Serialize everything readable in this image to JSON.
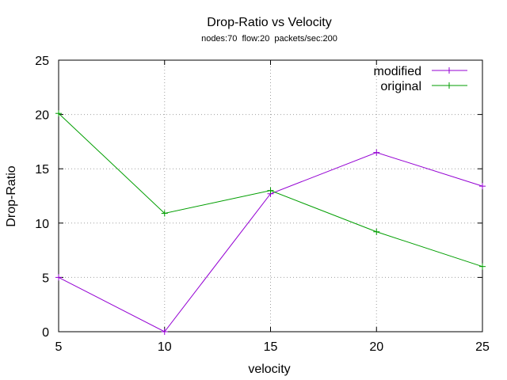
{
  "chart_data": {
    "type": "line",
    "title": "Drop-Ratio vs Velocity",
    "subtitle": "nodes:70  flow:20  packets/sec:200",
    "xlabel": "velocity",
    "ylabel": "Drop-Ratio",
    "xlim": [
      5,
      25
    ],
    "ylim": [
      0,
      25
    ],
    "x_ticks": [
      5,
      10,
      15,
      20,
      25
    ],
    "y_ticks": [
      0,
      5,
      10,
      15,
      20,
      25
    ],
    "grid": true,
    "legend_position": "top-right",
    "x": [
      5,
      10,
      15,
      20,
      25
    ],
    "series": [
      {
        "name": "modified",
        "color": "#9400d3",
        "values": [
          5.0,
          0.0,
          12.7,
          16.5,
          13.4
        ]
      },
      {
        "name": "original",
        "color": "#009e00",
        "values": [
          20.1,
          10.9,
          13.0,
          9.2,
          6.0
        ]
      }
    ]
  }
}
